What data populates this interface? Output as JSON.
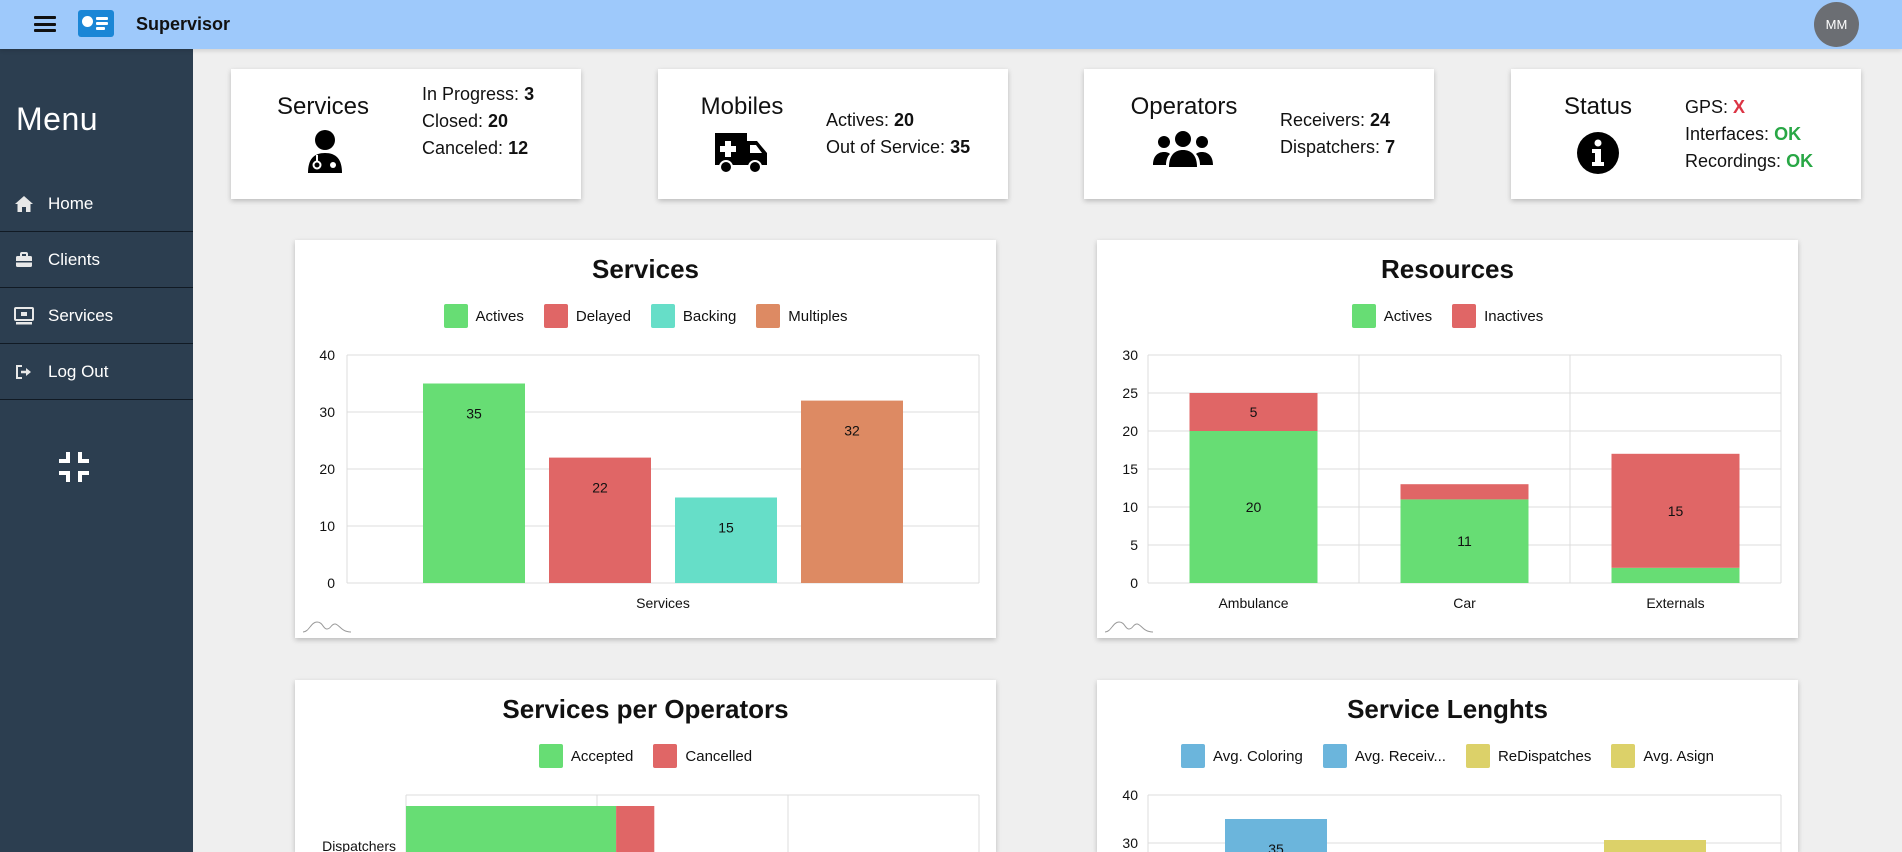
{
  "app": {
    "title": "Supervisor",
    "user_initials": "MM"
  },
  "sidebar": {
    "title": "Menu",
    "items": [
      {
        "label": "Home",
        "icon": "home-icon"
      },
      {
        "label": "Clients",
        "icon": "briefcase-icon"
      },
      {
        "label": "Services",
        "icon": "desktop-icon"
      },
      {
        "label": "Log Out",
        "icon": "sign-out-icon"
      }
    ]
  },
  "stats": {
    "services": {
      "title": "Services",
      "lines": [
        {
          "label": "In Progress:",
          "value": "3"
        },
        {
          "label": "Closed:",
          "value": "20"
        },
        {
          "label": "Canceled:",
          "value": "12"
        }
      ]
    },
    "mobiles": {
      "title": "Mobiles",
      "lines": [
        {
          "label": "Actives:",
          "value": "20"
        },
        {
          "label": "Out of Service:",
          "value": "35"
        }
      ]
    },
    "operators": {
      "title": "Operators",
      "lines": [
        {
          "label": "Receivers:",
          "value": "24"
        },
        {
          "label": "Dispatchers:",
          "value": "7"
        }
      ]
    },
    "status": {
      "title": "Status",
      "lines": [
        {
          "label": "GPS:",
          "value": "X"
        },
        {
          "label": "Interfaces:",
          "value": "OK"
        },
        {
          "label": "Recordings:",
          "value": "OK"
        }
      ]
    }
  },
  "colors": {
    "green": "#67dd74",
    "red": "#e06666",
    "teal": "#66dec8",
    "orange": "#dd8a63",
    "blue": "#6bb5dc",
    "yellow": "#dcd169",
    "topbar": "#9ec9fb",
    "sidebar": "#2c3e50"
  },
  "chart_data": [
    {
      "type": "bar",
      "title": "Services",
      "categories": [
        "Services"
      ],
      "series": [
        {
          "name": "Actives",
          "values": [
            35
          ]
        },
        {
          "name": "Delayed",
          "values": [
            22
          ]
        },
        {
          "name": "Backing",
          "values": [
            15
          ]
        },
        {
          "name": "Multiples",
          "values": [
            32
          ]
        }
      ],
      "yticks": [
        0,
        10,
        20,
        30,
        40
      ],
      "ylim": [
        0,
        40
      ],
      "grid": true,
      "legend": "top"
    },
    {
      "type": "bar",
      "stacked": true,
      "title": "Resources",
      "categories": [
        "Ambulance",
        "Car",
        "Externals"
      ],
      "series": [
        {
          "name": "Actives",
          "values": [
            20,
            11,
            2
          ]
        },
        {
          "name": "Inactives",
          "values": [
            5,
            2,
            15
          ]
        }
      ],
      "data_labels": {
        "Actives": [
          "20",
          "11",
          ""
        ],
        "Inactives": [
          "5",
          "",
          "15"
        ]
      },
      "yticks": [
        0,
        5,
        10,
        15,
        20,
        25,
        30
      ],
      "ylim": [
        0,
        30
      ],
      "grid": true,
      "legend": "top"
    },
    {
      "type": "bar",
      "orientation": "horizontal",
      "stacked": true,
      "title": "Services per Operators",
      "categories": [
        "Dispatchers"
      ],
      "series": [
        {
          "name": "Accepted",
          "values": [
            22
          ]
        },
        {
          "name": "Cancelled",
          "values": [
            4
          ]
        }
      ],
      "legend": "top"
    },
    {
      "type": "bar",
      "title": "Service Lenghts",
      "series": [
        {
          "name": "Avg. Coloring",
          "values": [
            35
          ]
        },
        {
          "name": "Avg. Receiv...",
          "values": []
        },
        {
          "name": "ReDispatches",
          "values": []
        },
        {
          "name": "Avg. Asign",
          "values": []
        }
      ],
      "yticks": [
        30,
        40
      ],
      "ylim": [
        0,
        40
      ],
      "legend": "top"
    }
  ]
}
